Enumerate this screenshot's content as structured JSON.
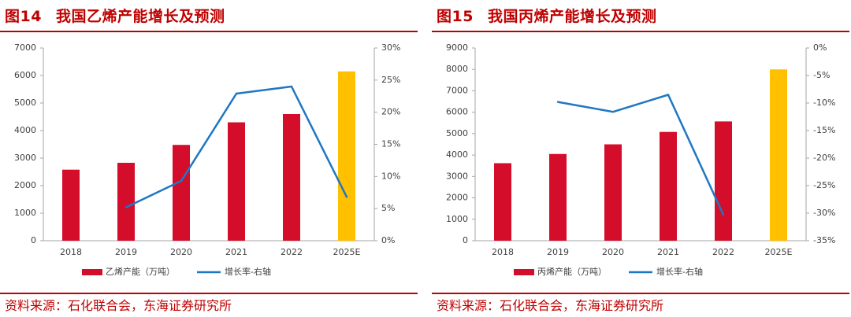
{
  "panels": [
    {
      "fig_number": "图14",
      "title": "我国乙烯产能增长及预测",
      "source": "资料来源：石化联合会，东海证券研究所"
    },
    {
      "fig_number": "图15",
      "title": "我国丙烯产能增长及预测",
      "source": "资料来源：石化联合会，东海证券研究所"
    }
  ],
  "colors": {
    "bar": "#d40d2b",
    "forecast_bar": "#ffc000",
    "line": "#1f77c4",
    "title": "#c00000",
    "axis_text": "#404040"
  },
  "chart_data": [
    {
      "type": "bar",
      "categories": [
        "2018",
        "2019",
        "2020",
        "2021",
        "2022",
        "2025E"
      ],
      "series": [
        {
          "name": "乙烯产能（万吨）",
          "axis": "left",
          "values": [
            2580,
            2830,
            3480,
            4300,
            4600,
            6150
          ]
        },
        {
          "name": "增长率-右轴",
          "axis": "right",
          "type": "line",
          "values": [
            null,
            5.2,
            9.3,
            22.9,
            24.0,
            6.8
          ]
        }
      ],
      "ylim_left": [
        0,
        7000
      ],
      "yticks_left": [
        "0",
        "1000",
        "2000",
        "3000",
        "4000",
        "5000",
        "6000",
        "7000"
      ],
      "ylim_right": [
        0,
        30
      ],
      "yticks_right": [
        "0%",
        "5%",
        "10%",
        "15%",
        "20%",
        "25%",
        "30%"
      ],
      "forecast_category": "2025E",
      "legend_position": "bottom"
    },
    {
      "type": "bar",
      "categories": [
        "2018",
        "2019",
        "2020",
        "2021",
        "2022",
        "2025E"
      ],
      "series": [
        {
          "name": "丙烯产能（万吨）",
          "axis": "left",
          "values": [
            3620,
            4050,
            4500,
            5080,
            5570,
            8000
          ]
        },
        {
          "name": "增长率-右轴",
          "axis": "right",
          "type": "line",
          "values": [
            null,
            -9.8,
            -11.6,
            -8.5,
            -30.3,
            null
          ]
        }
      ],
      "ylim_left": [
        0,
        9000
      ],
      "yticks_left": [
        "0",
        "1000",
        "2000",
        "3000",
        "4000",
        "5000",
        "6000",
        "7000",
        "8000",
        "9000"
      ],
      "ylim_right": [
        -35,
        0
      ],
      "yticks_right": [
        "-35%",
        "-30%",
        "-25%",
        "-20%",
        "-15%",
        "-10%",
        "-5%",
        "0%"
      ],
      "forecast_category": "2025E",
      "legend_position": "bottom"
    }
  ]
}
